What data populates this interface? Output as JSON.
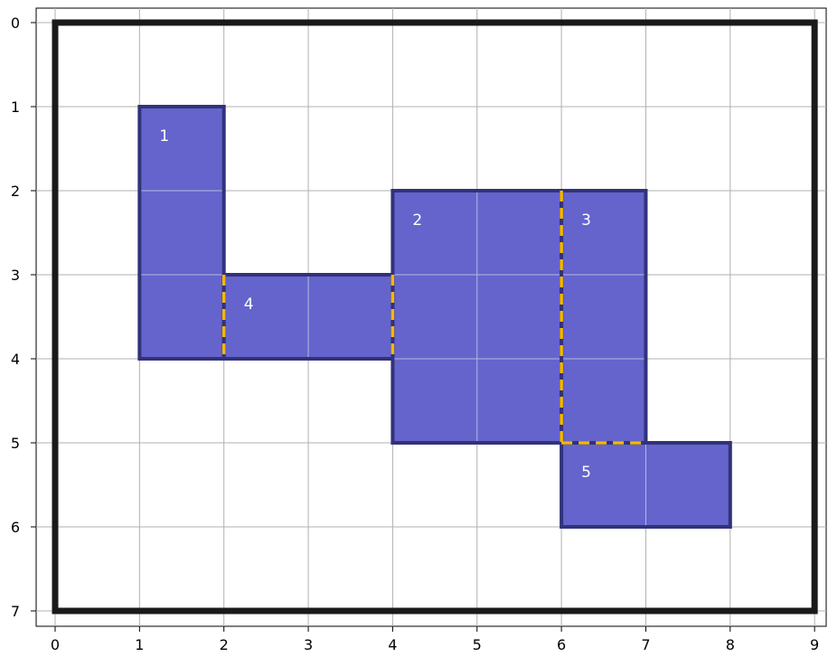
{
  "colors": {
    "background": "#ffffff",
    "grid": "#b0b0b0",
    "border": "#1a1a1a",
    "rect_fill": "#6464cc",
    "rect_stroke": "#32327a",
    "shared_edge": "#f5b800",
    "label": "#ffffff"
  },
  "chart_data": {
    "type": "diagram",
    "grid": true,
    "y_inverted": true,
    "xlim": [
      0,
      9
    ],
    "ylim": [
      0,
      7
    ],
    "x_ticks": [
      "0",
      "1",
      "2",
      "3",
      "4",
      "5",
      "6",
      "7",
      "8",
      "9"
    ],
    "y_ticks": [
      "0",
      "1",
      "2",
      "3",
      "4",
      "5",
      "6",
      "7"
    ],
    "container": {
      "x0": 0,
      "y0": 0,
      "x1": 9,
      "y1": 7
    },
    "rectangles": [
      {
        "label": "1",
        "x0": 1,
        "y0": 1,
        "x1": 2,
        "y1": 4
      },
      {
        "label": "2",
        "x0": 4,
        "y0": 2,
        "x1": 6,
        "y1": 5
      },
      {
        "label": "3",
        "x0": 6,
        "y0": 2,
        "x1": 7,
        "y1": 5
      },
      {
        "label": "4",
        "x0": 2,
        "y0": 3,
        "x1": 4,
        "y1": 4
      },
      {
        "label": "5",
        "x0": 6,
        "y0": 5,
        "x1": 8,
        "y1": 6
      }
    ],
    "shared_edges": [
      {
        "x0": 2,
        "y0": 3,
        "x1": 2,
        "y1": 4
      },
      {
        "x0": 4,
        "y0": 3,
        "x1": 4,
        "y1": 4
      },
      {
        "x0": 6,
        "y0": 2,
        "x1": 6,
        "y1": 5
      },
      {
        "x0": 6,
        "y0": 5,
        "x1": 7,
        "y1": 5
      }
    ]
  }
}
